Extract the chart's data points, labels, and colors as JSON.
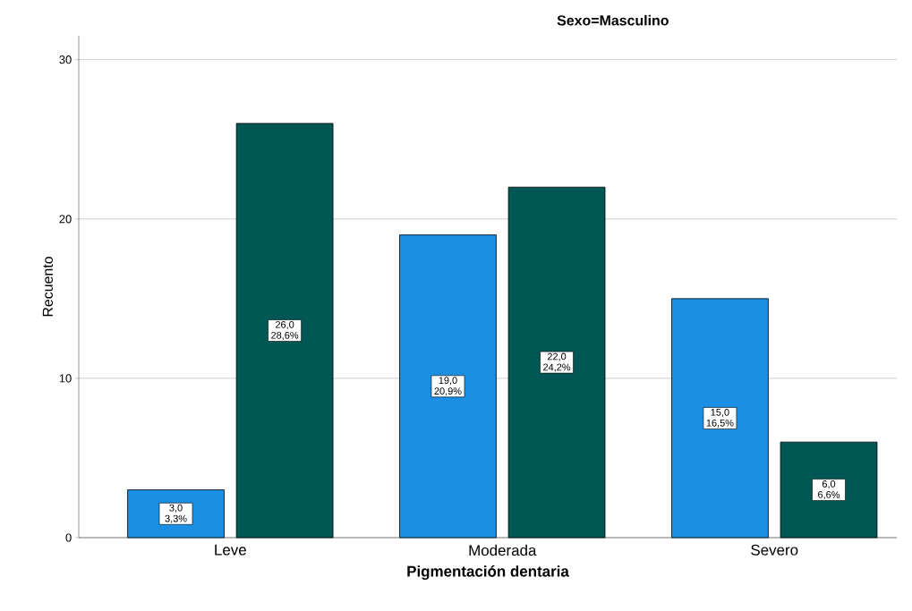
{
  "chart_data": {
    "type": "bar",
    "title": "Sexo=Masculino",
    "xlabel": "Pigmentación dentaria",
    "ylabel": "Recuento",
    "categories": [
      "Leve",
      "Moderada",
      "Severo"
    ],
    "series": [
      {
        "color": "#1a8fe3",
        "values": [
          3,
          19,
          15
        ],
        "value_labels": [
          "3,0 3,3%",
          "19,0 20,9%",
          "15,0 16,5%"
        ]
      },
      {
        "color": "#005753",
        "values": [
          26,
          22,
          6
        ],
        "value_labels": [
          "26,0 28,6%",
          "22,0 24,2%",
          "6,0 6,6%"
        ]
      }
    ],
    "ylim": [
      0,
      31.5
    ],
    "yticks": [
      0,
      10,
      20,
      30
    ],
    "grid": "y"
  }
}
